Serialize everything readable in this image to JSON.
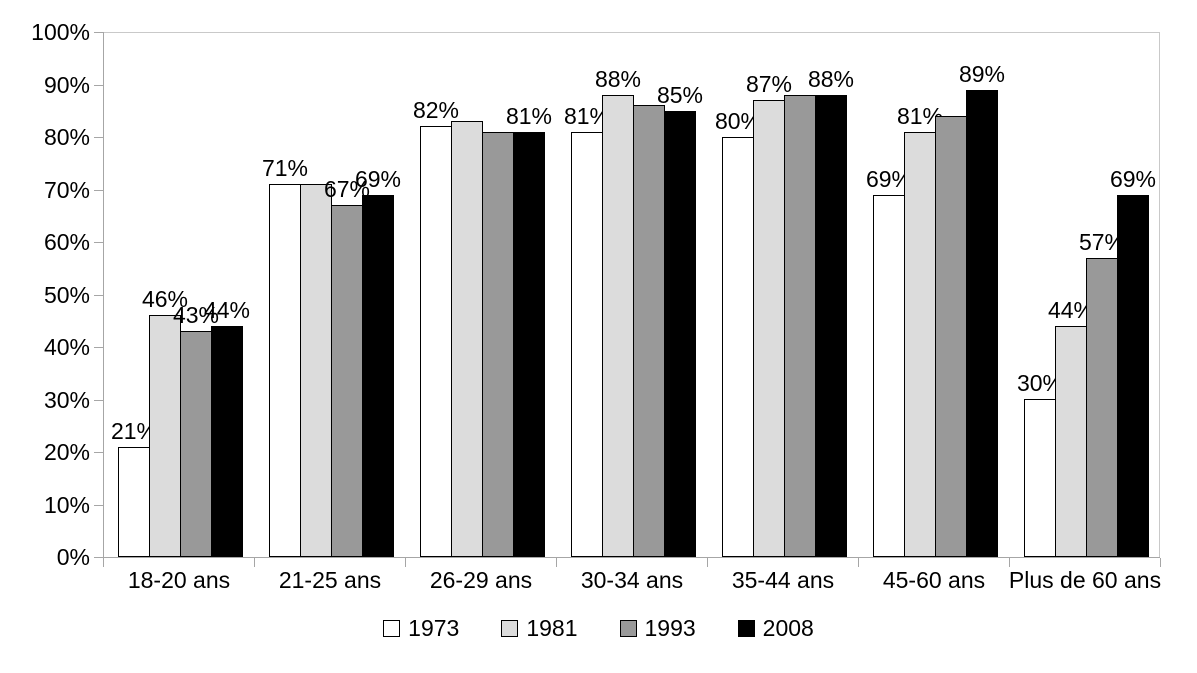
{
  "chart_data": {
    "type": "bar",
    "title": "",
    "xlabel": "",
    "ylabel": "",
    "categories": [
      "18-20 ans",
      "21-25 ans",
      "26-29 ans",
      "30-34 ans",
      "35-44 ans",
      "45-60 ans",
      "Plus de 60 ans"
    ],
    "series": [
      {
        "name": "1973",
        "color": "#FFFFFF",
        "values": [
          21,
          71,
          82,
          81,
          80,
          69,
          30
        ],
        "labels": [
          "21%",
          "71%",
          "82%",
          "81%",
          "80%",
          "69%",
          "30%"
        ]
      },
      {
        "name": "1981",
        "color": "#DCDCDC",
        "values": [
          46,
          71,
          83,
          88,
          87,
          81,
          44
        ],
        "labels": [
          "46%",
          null,
          null,
          "88%",
          "87%",
          "81%",
          "44%"
        ]
      },
      {
        "name": "1993",
        "color": "#999999",
        "values": [
          43,
          67,
          81,
          86,
          88,
          84,
          57
        ],
        "labels": [
          "43%",
          "67%",
          null,
          null,
          null,
          null,
          "57%"
        ]
      },
      {
        "name": "2008",
        "color": "#000000",
        "values": [
          44,
          69,
          81,
          85,
          88,
          89,
          69
        ],
        "labels": [
          "44%",
          "69%",
          "81%",
          "85%",
          "88%",
          "89%",
          "69%"
        ]
      }
    ],
    "y_ticks": [
      "0%",
      "10%",
      "20%",
      "30%",
      "40%",
      "50%",
      "60%",
      "70%",
      "80%",
      "90%",
      "100%"
    ],
    "ylim": [
      0,
      100
    ],
    "grid": "none",
    "legend_position": "bottom",
    "axis_color": "#A6A6A6",
    "plot_border_color": "#C9C9C9",
    "label_color": "#000000"
  }
}
